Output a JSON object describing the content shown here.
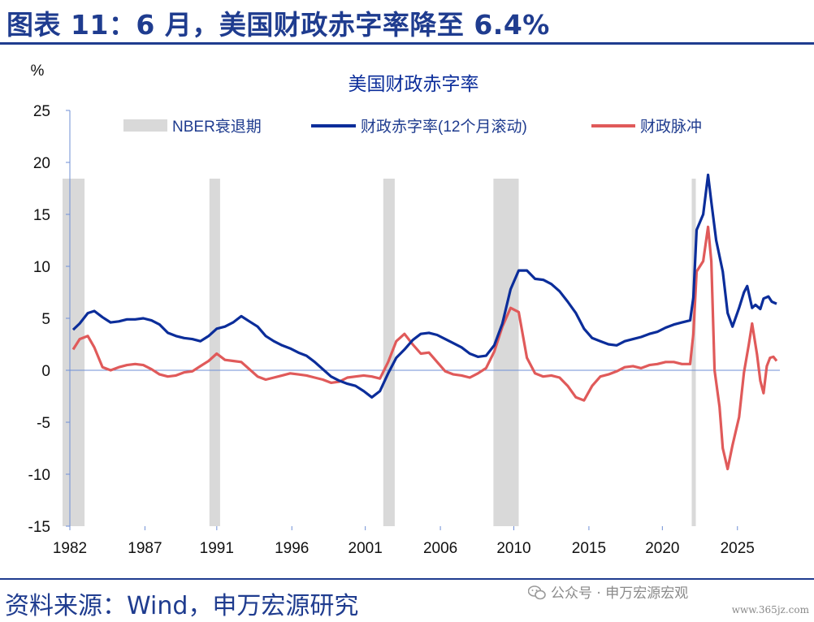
{
  "header": {
    "title": "图表 11：6 月，美国财政赤字率降至 6.4%"
  },
  "footer": {
    "source": "资料来源：Wind，申万宏源研究",
    "watermark": "公众号 · 申万宏源宏观",
    "site": "www.365jz.com"
  },
  "chart_data": {
    "type": "line",
    "title": "美国财政赤字率",
    "y_unit_label": "%",
    "ylim": [
      -15,
      25
    ],
    "y_ticks": [
      -15,
      -10,
      -5,
      0,
      5,
      10,
      15,
      20,
      25
    ],
    "x_range": [
      1982.0,
      2025.5
    ],
    "x_tick_labels": [
      "1982",
      "1987",
      "1991",
      "1996",
      "2001",
      "2006",
      "2010",
      "2015",
      "2020",
      "2025"
    ],
    "x_tick_positions": [
      1982,
      1986.6,
      1991,
      1995.6,
      2000.1,
      2004.7,
      2009.2,
      2013.8,
      2018.3,
      2022.9
    ],
    "legend_placement": "top",
    "recessions": {
      "name": "NBER衰退期",
      "color": "#d9d9d9",
      "periods": [
        [
          1981.55,
          1982.9
        ],
        [
          1990.55,
          1991.2
        ],
        [
          2001.2,
          2001.9
        ],
        [
          2007.95,
          2009.5
        ],
        [
          2020.1,
          2020.35
        ]
      ]
    },
    "series": [
      {
        "name": "财政赤字率(12个月滚动)",
        "color": "#0b2d9a",
        "points": [
          [
            1982.2,
            3.9
          ],
          [
            1982.6,
            4.5
          ],
          [
            1983.1,
            5.5
          ],
          [
            1983.5,
            5.7
          ],
          [
            1984.0,
            5.1
          ],
          [
            1984.5,
            4.6
          ],
          [
            1985.0,
            4.7
          ],
          [
            1985.5,
            4.9
          ],
          [
            1986.0,
            4.9
          ],
          [
            1986.5,
            5.0
          ],
          [
            1987.0,
            4.8
          ],
          [
            1987.5,
            4.4
          ],
          [
            1988.0,
            3.6
          ],
          [
            1988.5,
            3.3
          ],
          [
            1989.0,
            3.1
          ],
          [
            1989.5,
            3.0
          ],
          [
            1990.0,
            2.8
          ],
          [
            1990.5,
            3.3
          ],
          [
            1991.0,
            4.0
          ],
          [
            1991.5,
            4.2
          ],
          [
            1992.0,
            4.6
          ],
          [
            1992.5,
            5.2
          ],
          [
            1993.0,
            4.7
          ],
          [
            1993.5,
            4.2
          ],
          [
            1994.0,
            3.3
          ],
          [
            1994.5,
            2.8
          ],
          [
            1995.0,
            2.4
          ],
          [
            1995.5,
            2.1
          ],
          [
            1996.0,
            1.7
          ],
          [
            1996.5,
            1.4
          ],
          [
            1997.0,
            0.8
          ],
          [
            1997.5,
            0.1
          ],
          [
            1998.0,
            -0.6
          ],
          [
            1998.5,
            -1.0
          ],
          [
            1999.0,
            -1.3
          ],
          [
            1999.5,
            -1.5
          ],
          [
            2000.0,
            -2.0
          ],
          [
            2000.5,
            -2.6
          ],
          [
            2001.0,
            -2.0
          ],
          [
            2001.5,
            -0.3
          ],
          [
            2002.0,
            1.2
          ],
          [
            2002.5,
            2.0
          ],
          [
            2003.0,
            2.9
          ],
          [
            2003.5,
            3.5
          ],
          [
            2004.0,
            3.6
          ],
          [
            2004.5,
            3.4
          ],
          [
            2005.0,
            3.0
          ],
          [
            2005.5,
            2.6
          ],
          [
            2006.0,
            2.2
          ],
          [
            2006.5,
            1.6
          ],
          [
            2007.0,
            1.3
          ],
          [
            2007.5,
            1.4
          ],
          [
            2008.0,
            2.4
          ],
          [
            2008.5,
            4.5
          ],
          [
            2009.0,
            7.8
          ],
          [
            2009.5,
            9.6
          ],
          [
            2010.0,
            9.6
          ],
          [
            2010.5,
            8.8
          ],
          [
            2011.0,
            8.7
          ],
          [
            2011.5,
            8.3
          ],
          [
            2012.0,
            7.6
          ],
          [
            2012.5,
            6.6
          ],
          [
            2013.0,
            5.5
          ],
          [
            2013.5,
            4.0
          ],
          [
            2014.0,
            3.1
          ],
          [
            2014.5,
            2.8
          ],
          [
            2015.0,
            2.5
          ],
          [
            2015.5,
            2.4
          ],
          [
            2016.0,
            2.8
          ],
          [
            2016.5,
            3.0
          ],
          [
            2017.0,
            3.2
          ],
          [
            2017.5,
            3.5
          ],
          [
            2018.0,
            3.7
          ],
          [
            2018.5,
            4.1
          ],
          [
            2019.0,
            4.4
          ],
          [
            2019.5,
            4.6
          ],
          [
            2020.0,
            4.8
          ],
          [
            2020.2,
            7.0
          ],
          [
            2020.4,
            13.5
          ],
          [
            2020.8,
            15.0
          ],
          [
            2021.1,
            18.8
          ],
          [
            2021.3,
            16.2
          ],
          [
            2021.6,
            12.5
          ],
          [
            2022.0,
            9.5
          ],
          [
            2022.3,
            5.5
          ],
          [
            2022.6,
            4.2
          ],
          [
            2023.0,
            6.0
          ],
          [
            2023.3,
            7.5
          ],
          [
            2023.5,
            8.1
          ],
          [
            2023.8,
            6.0
          ],
          [
            2024.0,
            6.3
          ],
          [
            2024.3,
            5.9
          ],
          [
            2024.5,
            6.9
          ],
          [
            2024.8,
            7.1
          ],
          [
            2025.0,
            6.6
          ],
          [
            2025.3,
            6.4
          ]
        ]
      },
      {
        "name": "财政脉冲",
        "color": "#e05a5a",
        "points": [
          [
            1982.2,
            2.0
          ],
          [
            1982.6,
            3.0
          ],
          [
            1983.1,
            3.3
          ],
          [
            1983.5,
            2.2
          ],
          [
            1984.0,
            0.3
          ],
          [
            1984.5,
            0.0
          ],
          [
            1985.0,
            0.3
          ],
          [
            1985.5,
            0.5
          ],
          [
            1986.0,
            0.6
          ],
          [
            1986.5,
            0.5
          ],
          [
            1987.0,
            0.1
          ],
          [
            1987.5,
            -0.4
          ],
          [
            1988.0,
            -0.6
          ],
          [
            1988.5,
            -0.5
          ],
          [
            1989.0,
            -0.2
          ],
          [
            1989.5,
            -0.1
          ],
          [
            1990.0,
            0.4
          ],
          [
            1990.5,
            0.9
          ],
          [
            1991.0,
            1.6
          ],
          [
            1991.5,
            1.0
          ],
          [
            1992.0,
            0.9
          ],
          [
            1992.5,
            0.8
          ],
          [
            1993.0,
            0.1
          ],
          [
            1993.5,
            -0.6
          ],
          [
            1994.0,
            -0.9
          ],
          [
            1994.5,
            -0.7
          ],
          [
            1995.0,
            -0.5
          ],
          [
            1995.5,
            -0.3
          ],
          [
            1996.0,
            -0.4
          ],
          [
            1996.5,
            -0.5
          ],
          [
            1997.0,
            -0.7
          ],
          [
            1997.5,
            -0.9
          ],
          [
            1998.0,
            -1.2
          ],
          [
            1998.5,
            -1.1
          ],
          [
            1999.0,
            -0.7
          ],
          [
            1999.5,
            -0.6
          ],
          [
            2000.0,
            -0.5
          ],
          [
            2000.5,
            -0.6
          ],
          [
            2001.0,
            -0.8
          ],
          [
            2001.5,
            0.8
          ],
          [
            2002.0,
            2.8
          ],
          [
            2002.5,
            3.5
          ],
          [
            2003.0,
            2.5
          ],
          [
            2003.5,
            1.6
          ],
          [
            2004.0,
            1.7
          ],
          [
            2004.5,
            0.8
          ],
          [
            2005.0,
            -0.1
          ],
          [
            2005.5,
            -0.4
          ],
          [
            2006.0,
            -0.5
          ],
          [
            2006.5,
            -0.7
          ],
          [
            2007.0,
            -0.3
          ],
          [
            2007.5,
            0.2
          ],
          [
            2008.0,
            1.8
          ],
          [
            2008.5,
            4.2
          ],
          [
            2009.0,
            6.0
          ],
          [
            2009.5,
            5.6
          ],
          [
            2010.0,
            1.2
          ],
          [
            2010.5,
            -0.3
          ],
          [
            2011.0,
            -0.6
          ],
          [
            2011.5,
            -0.5
          ],
          [
            2012.0,
            -0.7
          ],
          [
            2012.5,
            -1.5
          ],
          [
            2013.0,
            -2.6
          ],
          [
            2013.5,
            -2.9
          ],
          [
            2014.0,
            -1.5
          ],
          [
            2014.5,
            -0.6
          ],
          [
            2015.0,
            -0.4
          ],
          [
            2015.5,
            -0.1
          ],
          [
            2016.0,
            0.3
          ],
          [
            2016.5,
            0.4
          ],
          [
            2017.0,
            0.2
          ],
          [
            2017.5,
            0.5
          ],
          [
            2018.0,
            0.6
          ],
          [
            2018.5,
            0.8
          ],
          [
            2019.0,
            0.8
          ],
          [
            2019.5,
            0.6
          ],
          [
            2020.0,
            0.6
          ],
          [
            2020.2,
            3.5
          ],
          [
            2020.4,
            9.5
          ],
          [
            2020.8,
            10.5
          ],
          [
            2021.1,
            13.8
          ],
          [
            2021.3,
            10.5
          ],
          [
            2021.5,
            0.0
          ],
          [
            2021.8,
            -3.5
          ],
          [
            2022.0,
            -7.5
          ],
          [
            2022.3,
            -9.5
          ],
          [
            2022.6,
            -7.2
          ],
          [
            2023.0,
            -4.5
          ],
          [
            2023.3,
            -0.2
          ],
          [
            2023.6,
            2.5
          ],
          [
            2023.8,
            4.5
          ],
          [
            2024.1,
            1.5
          ],
          [
            2024.3,
            -1.0
          ],
          [
            2024.5,
            -2.2
          ],
          [
            2024.7,
            0.4
          ],
          [
            2024.9,
            1.2
          ],
          [
            2025.1,
            1.3
          ],
          [
            2025.3,
            0.9
          ]
        ]
      }
    ]
  }
}
